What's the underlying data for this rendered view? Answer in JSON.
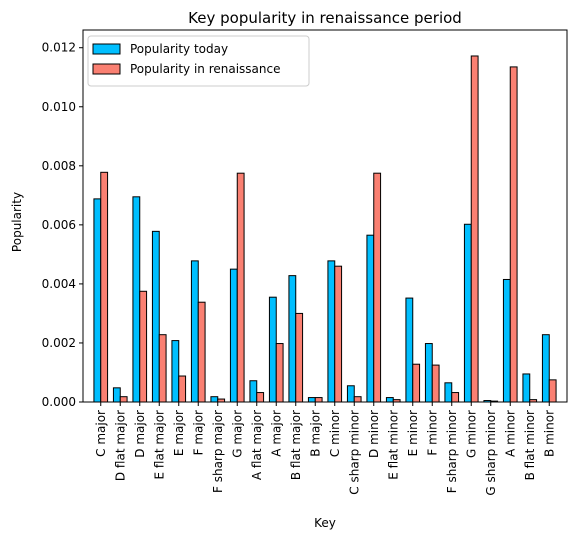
{
  "chart_data": {
    "type": "bar",
    "title": "Key popularity in renaissance period",
    "xlabel": "Key",
    "ylabel": "Popularity",
    "ylim": [
      0,
      0.0126
    ],
    "yticks": [
      "0.000",
      "0.002",
      "0.004",
      "0.006",
      "0.008",
      "0.010",
      "0.012"
    ],
    "legend_position": "top-left",
    "grid": false,
    "categories": [
      "C major",
      "D flat major",
      "D major",
      "E flat major",
      "E major",
      "F major",
      "F sharp major",
      "G major",
      "A flat major",
      "A major",
      "B flat major",
      "B major",
      "C minor",
      "C sharp minor",
      "D minor",
      "E flat minor",
      "E minor",
      "F minor",
      "F sharp minor",
      "G minor",
      "G sharp minor",
      "A minor",
      "B flat minor",
      "B minor"
    ],
    "series": [
      {
        "name": "Popularity today",
        "color": "#00bfff",
        "values": [
          0.00688,
          0.00048,
          0.00695,
          0.00578,
          0.00208,
          0.00478,
          0.00018,
          0.0045,
          0.00072,
          0.00355,
          0.00428,
          0.00015,
          0.00478,
          0.00055,
          0.00565,
          0.00015,
          0.00352,
          0.00198,
          0.00065,
          0.00602,
          5e-05,
          0.00415,
          0.00095,
          0.00228
        ]
      },
      {
        "name": "Popularity in renaissance",
        "color": "#fa8072",
        "values": [
          0.00778,
          0.00018,
          0.00375,
          0.00228,
          0.00088,
          0.00338,
          0.0001,
          0.00775,
          0.00032,
          0.00198,
          0.003,
          0.00015,
          0.0046,
          0.00018,
          0.00775,
          8e-05,
          0.00128,
          0.00125,
          0.00032,
          0.01172,
          3e-05,
          0.01135,
          8e-05,
          0.00075
        ]
      }
    ]
  }
}
